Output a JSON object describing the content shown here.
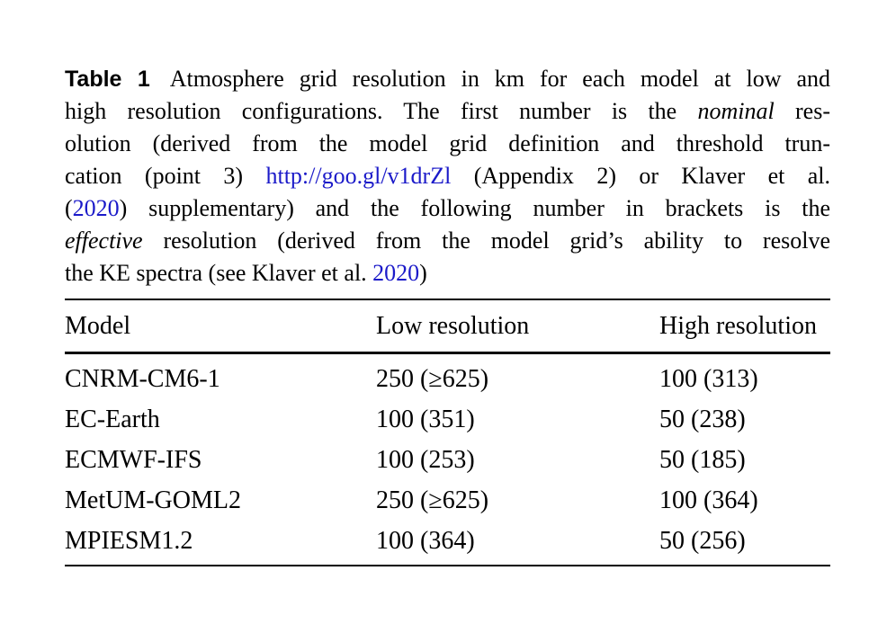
{
  "colors": {
    "background": "#ffffff",
    "text": "#000000",
    "link_blue": "#1b1ac9",
    "rule": "#000000"
  },
  "caption": {
    "label": "Table 1",
    "line1": "Atmosphere grid resolution in km for each model at low and",
    "line2_pre": "high resolution configurations. The first number is the ",
    "line2_italic": "nominal",
    "line2_post": " res-",
    "line3": "olution (derived from the model grid definition and threshold trun-",
    "line4_pre": "cation (point 3) ",
    "line4_link": "http://goo.gl/v1drZl",
    "line4_post": " (Appendix 2) or Klaver et al.",
    "line5_pre": "(",
    "line5_link": "2020",
    "line5_post": ") supplementary) and the following number in brackets is the",
    "line6_italic": "effective",
    "line6_post": " resolution (derived from the model grid’s ability to resolve",
    "line7_pre": "the KE spectra (see Klaver et al. ",
    "line7_link": "2020",
    "line7_post": ")"
  },
  "table": {
    "headers": [
      "Model",
      "Low resolution",
      "High resolution"
    ],
    "rows": [
      {
        "model": "CNRM-CM6-1",
        "low": "250 (≥625)",
        "high": "100 (313)"
      },
      {
        "model": "EC-Earth",
        "low": "100 (351)",
        "high": "50 (238)"
      },
      {
        "model": "ECMWF-IFS",
        "low": "100 (253)",
        "high": "50 (185)"
      },
      {
        "model": "MetUM-GOML2",
        "low": "250 (≥625)",
        "high": "100 (364)"
      },
      {
        "model": "MPIESM1.2",
        "low": "100 (364)",
        "high": "50 (256)"
      }
    ]
  }
}
